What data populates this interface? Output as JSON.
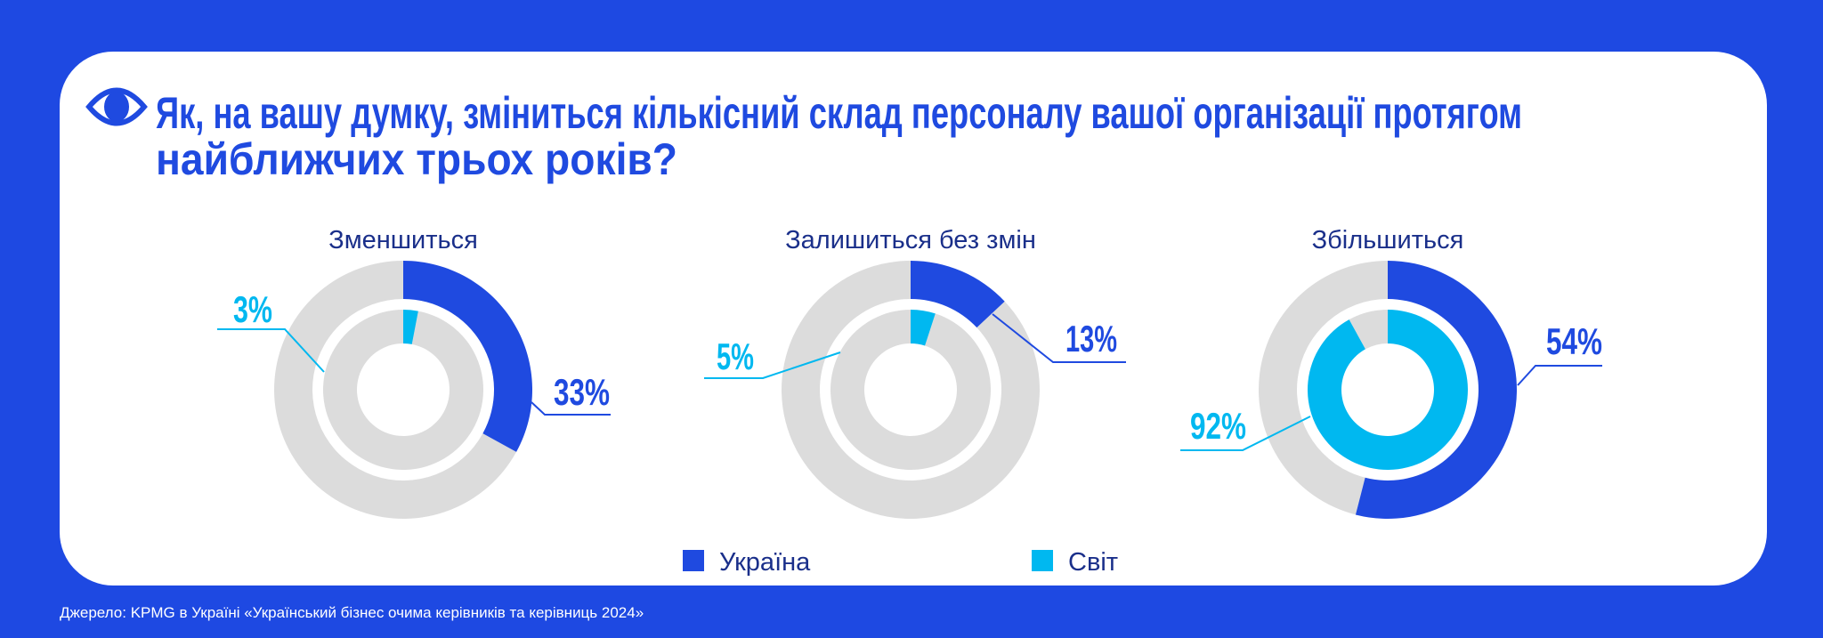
{
  "title_lines": [
    "Як, на вашу думку, зміниться кількісний склад персоналу вашої організації протягом",
    "найближчих трьох років?"
  ],
  "icon": "eye-icon",
  "colors": {
    "background": "#1e49e2",
    "ukraine": "#1f4ae0",
    "world": "#00b8f0",
    "rest": "#dcdcdc",
    "text": "#1a2f8a",
    "card": "#ffffff"
  },
  "legend": [
    {
      "label": "Україна",
      "color": "#1f4ae0"
    },
    {
      "label": "Світ",
      "color": "#00b8f0"
    }
  ],
  "source": "Джерело: KPMG в Україні «Український бізнес очима керівників та керівниць 2024»",
  "chart_data": {
    "type": "pie",
    "subtype": "nested-donut",
    "unit": "%",
    "series_order": [
      "Україна (outer ring)",
      "Світ (inner ring)"
    ],
    "charts": [
      {
        "category": "Зменшиться",
        "ukraine": 33,
        "world": 3,
        "ukraine_label": "33%",
        "world_label": "3%"
      },
      {
        "category": "Залишиться без змін",
        "ukraine": 13,
        "world": 5,
        "ukraine_label": "13%",
        "world_label": "5%"
      },
      {
        "category": "Збільшиться",
        "ukraine": 54,
        "world": 92,
        "ukraine_label": "54%",
        "world_label": "92%"
      }
    ],
    "legend_placement": "bottom"
  }
}
